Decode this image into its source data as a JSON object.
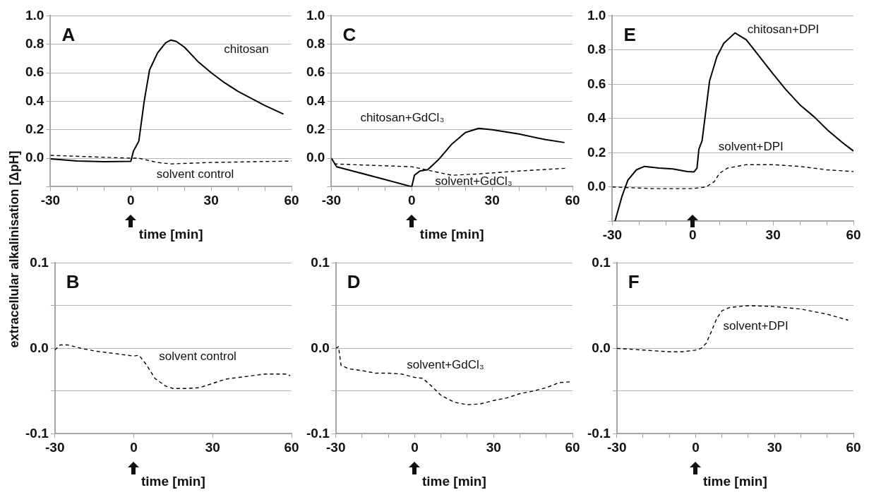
{
  "chart_data": [
    {
      "type": "line",
      "title": "A",
      "xlabel": "time [min]",
      "ylabel": "extracellular alkalinisation [ΔpH]",
      "xlim": [
        -30,
        60
      ],
      "xticks": [
        -30,
        {
          "value": -20,
          "label": null
        },
        {
          "value": -10,
          "label": null
        },
        0,
        {
          "value": 10,
          "label": null
        },
        {
          "value": 20,
          "label": null
        },
        30,
        {
          "value": 40,
          "label": null
        },
        {
          "value": 50,
          "label": null
        },
        60
      ],
      "ylim": [
        -0.2,
        1.0
      ],
      "yticks": [
        {
          "value": -0.2,
          "label": null
        },
        {
          "value": 0,
          "label": "0.0"
        },
        0.2,
        0.4,
        0.6,
        0.8,
        {
          "value": 1,
          "label": "1.0"
        }
      ],
      "grid": "y",
      "legend": false,
      "marker": "none",
      "series": [
        {
          "name": "chitosan",
          "color": "#000000",
          "line_style": "solid",
          "x": [
            -30,
            -20,
            -10,
            0,
            1,
            3,
            5,
            7,
            10,
            13,
            15,
            17,
            20,
            25,
            30,
            35,
            40,
            45,
            50,
            57
          ],
          "values": [
            -0.005,
            -0.02,
            -0.025,
            -0.022,
            0.05,
            0.12,
            0.4,
            0.62,
            0.74,
            0.81,
            0.83,
            0.82,
            0.78,
            0.68,
            0.6,
            0.53,
            0.47,
            0.42,
            0.37,
            0.31
          ]
        },
        {
          "name": "solvent control",
          "color": "#000000",
          "line_style": "dashed",
          "x": [
            -30,
            -15,
            0,
            3,
            10,
            15,
            30,
            45,
            60
          ],
          "values": [
            0.02,
            0.01,
            0.0,
            0.0,
            -0.03,
            -0.04,
            -0.03,
            -0.025,
            -0.02
          ]
        }
      ]
    },
    {
      "type": "line",
      "title": "C",
      "xlabel": "time [min]",
      "xlim": [
        -30,
        60
      ],
      "xticks": [
        -30,
        {
          "value": -20,
          "label": null
        },
        {
          "value": -10,
          "label": null
        },
        0,
        {
          "value": 10,
          "label": null
        },
        {
          "value": 20,
          "label": null
        },
        30,
        {
          "value": 40,
          "label": null
        },
        {
          "value": 50,
          "label": null
        },
        60
      ],
      "ylim": [
        -0.2,
        1.0
      ],
      "yticks": [
        {
          "value": -0.2,
          "label": null
        },
        {
          "value": 0,
          "label": "0.0"
        },
        0.2,
        0.4,
        0.6,
        0.8,
        {
          "value": 1,
          "label": "1.0"
        }
      ],
      "grid": "y",
      "legend": false,
      "marker": "none",
      "series": [
        {
          "name": "chitosan+GdCl₃",
          "color": "#000000",
          "line_style": "solid",
          "x": [
            -30,
            -28,
            -20,
            -10,
            0,
            1,
            3,
            6,
            10,
            15,
            20,
            25,
            30,
            40,
            50,
            57
          ],
          "values": [
            0.0,
            -0.06,
            -0.1,
            -0.15,
            -0.2,
            -0.12,
            -0.09,
            -0.08,
            -0.01,
            0.1,
            0.18,
            0.21,
            0.2,
            0.17,
            0.13,
            0.11
          ]
        },
        {
          "name": "solvent+GdCl₃",
          "color": "#000000",
          "line_style": "dashed",
          "x": [
            -29,
            -15,
            0,
            5,
            10,
            15,
            25,
            40,
            58
          ],
          "values": [
            -0.04,
            -0.05,
            -0.06,
            -0.08,
            -0.1,
            -0.12,
            -0.11,
            -0.09,
            -0.07
          ]
        }
      ]
    },
    {
      "type": "line",
      "title": "E",
      "xlim": [
        -30,
        60
      ],
      "xticks": [
        -30,
        {
          "value": -20,
          "label": null
        },
        {
          "value": -10,
          "label": null
        },
        0,
        {
          "value": 10,
          "label": null
        },
        {
          "value": 20,
          "label": null
        },
        30,
        {
          "value": 40,
          "label": null
        },
        {
          "value": 50,
          "label": null
        },
        60
      ],
      "ylim": [
        -0.2,
        1.0
      ],
      "yticks": [
        {
          "value": -0.2,
          "label": null
        },
        {
          "value": 0,
          "label": "0.0"
        },
        0.2,
        0.4,
        0.6,
        0.8,
        {
          "value": 1,
          "label": "1.0"
        }
      ],
      "grid": "y",
      "legend": false,
      "marker": "none",
      "series": [
        {
          "name": "chitosan+DPI",
          "color": "#000000",
          "line_style": "solid",
          "x": [
            -29,
            -26.3,
            -24.2,
            -21,
            -18,
            -12.6,
            -7.4,
            -2,
            0.5,
            1.6,
            2.3,
            3.5,
            4.7,
            6.3,
            9,
            11.6,
            15.8,
            20,
            24,
            29.5,
            34.7,
            40,
            45.3,
            50.5,
            55.8,
            60
          ],
          "values": [
            -0.2,
            -0.05,
            0.04,
            0.1,
            0.12,
            0.11,
            0.105,
            0.09,
            0.088,
            0.11,
            0.22,
            0.27,
            0.42,
            0.62,
            0.76,
            0.84,
            0.9,
            0.86,
            0.78,
            0.67,
            0.57,
            0.48,
            0.41,
            0.33,
            0.26,
            0.21
          ]
        },
        {
          "name": "solvent+DPI",
          "color": "#000000",
          "line_style": "dashed",
          "x": [
            -30,
            -15,
            0,
            5,
            8,
            10,
            13,
            20,
            30,
            40,
            50,
            60
          ],
          "values": [
            0.0,
            -0.01,
            -0.01,
            0.0,
            0.03,
            0.08,
            0.11,
            0.13,
            0.13,
            0.12,
            0.1,
            0.09
          ]
        }
      ]
    },
    {
      "type": "line",
      "title": "B",
      "xlabel": "time [min]",
      "xlim": [
        -30,
        60
      ],
      "xticks": [
        -30,
        0,
        30,
        60
      ],
      "ylim": [
        -0.1,
        0.1
      ],
      "yticks": [
        -0.1,
        {
          "value": -0.05,
          "label": null
        },
        {
          "value": 0,
          "label": "0.0"
        },
        {
          "value": 0.05,
          "label": null
        },
        0.1
      ],
      "grid": "y",
      "legend": false,
      "marker": "none",
      "series": [
        {
          "name": "solvent control",
          "color": "#000000",
          "line_style": "dashed",
          "x": [
            -30,
            -28,
            -25,
            -20,
            -15,
            -10,
            -5,
            0,
            2,
            5,
            8,
            12,
            15,
            20,
            25,
            30,
            35,
            40,
            50,
            58,
            59.5
          ],
          "values": [
            -0.002,
            0.004,
            0.004,
            0.0,
            -0.003,
            -0.005,
            -0.007,
            -0.009,
            -0.008,
            -0.02,
            -0.035,
            -0.044,
            -0.047,
            -0.047,
            -0.046,
            -0.041,
            -0.036,
            -0.034,
            -0.03,
            -0.03,
            -0.032
          ]
        }
      ]
    },
    {
      "type": "line",
      "title": "D",
      "xlabel": "time [min]",
      "xlim": [
        -30,
        60
      ],
      "xticks": [
        -30,
        {
          "value": -20,
          "label": null
        },
        {
          "value": -10,
          "label": null
        },
        0,
        {
          "value": 10,
          "label": null
        },
        {
          "value": 20,
          "label": null
        },
        30,
        {
          "value": 40,
          "label": null
        },
        {
          "value": 50,
          "label": null
        },
        60
      ],
      "ylim": [
        -0.1,
        0.1
      ],
      "yticks": [
        -0.1,
        {
          "value": -0.05,
          "label": null
        },
        {
          "value": 0,
          "label": "0.0"
        },
        {
          "value": 0.05,
          "label": null
        },
        0.1
      ],
      "grid": "y",
      "legend": false,
      "marker": "none",
      "series": [
        {
          "name": "solvent+GdCl₃",
          "color": "#000000",
          "line_style": "dashed",
          "x": [
            -30,
            -29,
            -28,
            -25,
            -20,
            -15,
            -10,
            -5,
            0,
            3,
            6,
            10,
            15,
            20,
            25,
            30,
            35,
            40,
            45,
            50,
            55,
            60
          ],
          "values": [
            0.0,
            0.002,
            -0.02,
            -0.024,
            -0.026,
            -0.029,
            -0.029,
            -0.03,
            -0.034,
            -0.035,
            -0.043,
            -0.055,
            -0.063,
            -0.066,
            -0.065,
            -0.061,
            -0.058,
            -0.053,
            -0.05,
            -0.046,
            -0.04,
            -0.039
          ]
        }
      ]
    },
    {
      "type": "line",
      "title": "F",
      "xlabel": "time [min]",
      "xlim": [
        -30,
        60
      ],
      "xticks": [
        -30,
        {
          "value": -20,
          "label": null
        },
        {
          "value": -10,
          "label": null
        },
        0,
        {
          "value": 10,
          "label": null
        },
        {
          "value": 20,
          "label": null
        },
        30,
        {
          "value": 40,
          "label": null
        },
        {
          "value": 50,
          "label": null
        },
        60
      ],
      "ylim": [
        -0.1,
        0.1
      ],
      "yticks": [
        -0.1,
        {
          "value": -0.05,
          "label": null
        },
        {
          "value": 0,
          "label": "0.0"
        },
        {
          "value": 0.05,
          "label": null
        },
        0.1
      ],
      "grid": "y",
      "legend": false,
      "marker": "none",
      "series": [
        {
          "name": "solvent+DPI",
          "color": "#000000",
          "line_style": "dashed",
          "x": [
            -30,
            -20,
            -10,
            -5,
            0,
            2,
            4,
            6,
            8,
            10,
            13,
            20,
            30,
            40,
            50,
            58
          ],
          "values": [
            0.0,
            -0.002,
            -0.004,
            -0.004,
            -0.002,
            0.0,
            0.006,
            0.02,
            0.035,
            0.044,
            0.048,
            0.05,
            0.049,
            0.046,
            0.04,
            0.033
          ]
        }
      ]
    }
  ]
}
